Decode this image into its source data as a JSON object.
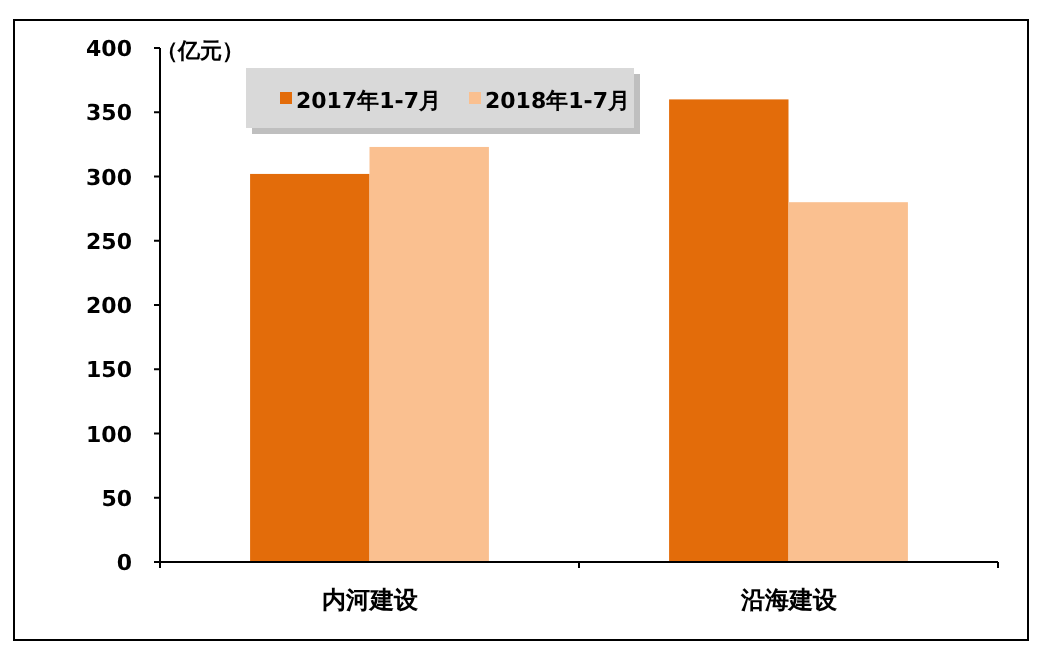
{
  "chart_data": {
    "type": "bar",
    "ylabel": "（亿元）",
    "categories": [
      "内河建设",
      "沿海建设"
    ],
    "series": [
      {
        "name": "2017年1-7月",
        "color": "#e36c0a",
        "values": [
          302,
          360
        ]
      },
      {
        "name": "2018年1-7月",
        "color": "#fac090",
        "values": [
          323,
          280
        ]
      }
    ],
    "ylim": [
      0,
      400
    ],
    "yticks": [
      0,
      50,
      100,
      150,
      200,
      250,
      300,
      350,
      400
    ],
    "grid": false,
    "legend": "top left"
  }
}
